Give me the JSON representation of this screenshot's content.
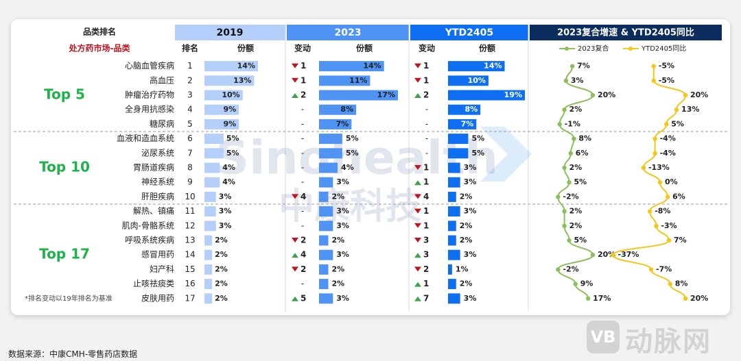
{
  "header": {
    "category_ranking": "品类排名",
    "market": "处方药市场-品类",
    "group_2019": "2019",
    "group_2023": "2023",
    "group_ytd": "YTD2405",
    "group_growth": "2023复合增速 & YTD2405同比",
    "col_rank": "排名",
    "col_share": "份额",
    "col_change": "变动"
  },
  "groups": [
    {
      "label": "Top 5",
      "from": 0,
      "to": 4
    },
    {
      "label": "Top 10",
      "from": 5,
      "to": 9
    },
    {
      "label": "Top 17",
      "from": 10,
      "to": 16
    }
  ],
  "footnote": "*排名变动以19年排名为基准",
  "source": "数据来源：中康CMH-零售药店数据",
  "watermark": {
    "en": "Sinohealth",
    "cn": "中康科技"
  },
  "logo": {
    "mark": "VB",
    "text": "动脉网"
  },
  "colors": {
    "head_2019": "#b4cffa",
    "head_2023": "#4f94f5",
    "head_ytd": "#0f6ff2",
    "head_growth": "#0b2d5e",
    "bar_2019": "#b4cffa",
    "bar_2023": "#4f94f5",
    "bar_ytd": "#0f6ff2",
    "up": "#3fa34d",
    "down": "#c0141c",
    "group_label": "#1db34a",
    "market_label": "#c0141c",
    "line_cagr": "#8bbf5a",
    "line_ytd": "#f5c518"
  },
  "chart_data": {
    "type": "table",
    "rows": [
      {
        "name": "心脑血管疾病",
        "rank_2019": "1",
        "share_2019": 14,
        "change_2023": "1",
        "dir_2023": "down",
        "share_2023": 14,
        "change_ytd": "1",
        "dir_ytd": "down",
        "share_ytd": 14,
        "cagr_2023": 7,
        "yoy_ytd": -5
      },
      {
        "name": "高血压",
        "rank_2019": "2",
        "share_2019": 13,
        "change_2023": "1",
        "dir_2023": "down",
        "share_2023": 11,
        "change_ytd": "1",
        "dir_ytd": "down",
        "share_ytd": 10,
        "cagr_2023": 3,
        "yoy_ytd": -5
      },
      {
        "name": "肿瘤治疗药物",
        "rank_2019": "3",
        "share_2019": 10,
        "change_2023": "2",
        "dir_2023": "up",
        "share_2023": 17,
        "change_ytd": "2",
        "dir_ytd": "up",
        "share_ytd": 19,
        "cagr_2023": 20,
        "yoy_ytd": 20
      },
      {
        "name": "全身用抗感染",
        "rank_2019": "4",
        "share_2019": 9,
        "change_2023": "-",
        "dir_2023": "none",
        "share_2023": 8,
        "change_ytd": "-",
        "dir_ytd": "none",
        "share_ytd": 8,
        "cagr_2023": 2,
        "yoy_ytd": 13
      },
      {
        "name": "糖尿病",
        "rank_2019": "5",
        "share_2019": 9,
        "change_2023": "-",
        "dir_2023": "none",
        "share_2023": 7,
        "change_ytd": "-",
        "dir_ytd": "none",
        "share_ytd": 7,
        "cagr_2023": -1,
        "yoy_ytd": 5
      },
      {
        "name": "血液和造血系统",
        "rank_2019": "6",
        "share_2019": 5,
        "change_2023": "-",
        "dir_2023": "none",
        "share_2023": 5,
        "change_ytd": "-",
        "dir_ytd": "none",
        "share_ytd": 5,
        "cagr_2023": 8,
        "yoy_ytd": -4
      },
      {
        "name": "泌尿系统",
        "rank_2019": "7",
        "share_2019": 5,
        "change_2023": "-",
        "dir_2023": "none",
        "share_2023": 5,
        "change_ytd": "-",
        "dir_ytd": "none",
        "share_ytd": 5,
        "cagr_2023": 6,
        "yoy_ytd": -4
      },
      {
        "name": "胃肠道疾病",
        "rank_2019": "8",
        "share_2019": 4,
        "change_2023": "-",
        "dir_2023": "none",
        "share_2023": 4,
        "change_ytd": "1",
        "dir_ytd": "down",
        "share_ytd": 3,
        "cagr_2023": 2,
        "yoy_ytd": -13
      },
      {
        "name": "神经系统",
        "rank_2019": "9",
        "share_2019": 4,
        "change_2023": "-",
        "dir_2023": "none",
        "share_2023": 3,
        "change_ytd": "1",
        "dir_ytd": "up",
        "share_ytd": 3,
        "cagr_2023": 5,
        "yoy_ytd": 0
      },
      {
        "name": "肝胆疾病",
        "rank_2019": "10",
        "share_2019": 3,
        "change_2023": "4",
        "dir_2023": "down",
        "share_2023": 2,
        "change_ytd": "4",
        "dir_ytd": "down",
        "share_ytd": 2,
        "cagr_2023": -2,
        "yoy_ytd": 6
      },
      {
        "name": "解热、镇痛",
        "rank_2019": "11",
        "share_2019": 3,
        "change_2023": "-",
        "dir_2023": "none",
        "share_2023": 3,
        "change_ytd": "1",
        "dir_ytd": "down",
        "share_ytd": 3,
        "cagr_2023": 2,
        "yoy_ytd": -8
      },
      {
        "name": "肌肉-骨骼系统",
        "rank_2019": "12",
        "share_2019": 3,
        "change_2023": "-",
        "dir_2023": "none",
        "share_2023": 3,
        "change_ytd": "1",
        "dir_ytd": "down",
        "share_ytd": 2,
        "cagr_2023": 2,
        "yoy_ytd": -3
      },
      {
        "name": "呼吸系统疾病",
        "rank_2019": "13",
        "share_2019": 2,
        "change_2023": "2",
        "dir_2023": "down",
        "share_2023": 2,
        "change_ytd": "3",
        "dir_ytd": "down",
        "share_ytd": 2,
        "cagr_2023": 5,
        "yoy_ytd": 7
      },
      {
        "name": "感冒用药",
        "rank_2019": "14",
        "share_2019": 2,
        "change_2023": "4",
        "dir_2023": "up",
        "share_2023": 3,
        "change_ytd": "3",
        "dir_ytd": "up",
        "share_ytd": 3,
        "cagr_2023": 20,
        "yoy_ytd": -37
      },
      {
        "name": "妇产科",
        "rank_2019": "15",
        "share_2019": 2,
        "change_2023": "2",
        "dir_2023": "down",
        "share_2023": 2,
        "change_ytd": "2",
        "dir_ytd": "down",
        "share_ytd": 1,
        "cagr_2023": -2,
        "yoy_ytd": -7
      },
      {
        "name": "止咳祛痰类",
        "rank_2019": "16",
        "share_2019": 2,
        "change_2023": "-",
        "dir_2023": "none",
        "share_2023": 2,
        "change_ytd": "1",
        "dir_ytd": "up",
        "share_ytd": 2,
        "cagr_2023": 9,
        "yoy_ytd": 8
      },
      {
        "name": "皮肤用药",
        "rank_2019": "17",
        "share_2019": 2,
        "change_2023": "5",
        "dir_2023": "up",
        "share_2023": 3,
        "change_ytd": "7",
        "dir_ytd": "up",
        "share_ytd": 3,
        "cagr_2023": 17,
        "yoy_ytd": 20
      }
    ],
    "legend": [
      "2023复合",
      "YTD2405同比"
    ],
    "value_suffix": "%"
  }
}
